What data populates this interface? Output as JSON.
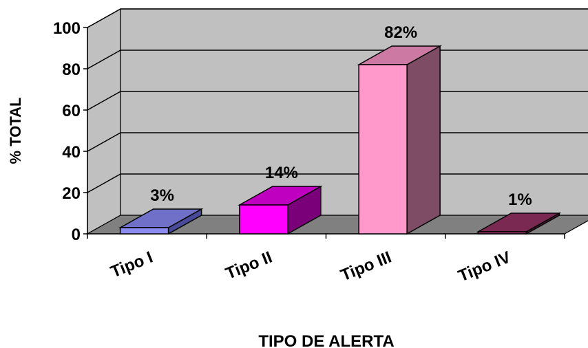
{
  "chart_data": {
    "type": "bar",
    "categories": [
      "Tipo I",
      "Tipo II",
      "Tipo III",
      "Tipo IV"
    ],
    "values": [
      3,
      14,
      82,
      1
    ],
    "data_labels": [
      "3%",
      "14%",
      "82%",
      "1%"
    ],
    "xlabel": "TIPO DE ALERTA",
    "ylabel": "% TOTAL",
    "ylim": [
      0,
      100
    ],
    "yticks": [
      "0",
      "20",
      "40",
      "60",
      "80",
      "100"
    ],
    "grid": true,
    "three_d": true,
    "legend": "none",
    "colors": {
      "wall": "#c0c0c0",
      "floor": "#808080",
      "bars": [
        {
          "front": "#8c8cf0",
          "top": "#7070c8",
          "side": "#4a4a9a"
        },
        {
          "front": "#ff00ff",
          "top": "#c000c0",
          "side": "#7a007a"
        },
        {
          "front": "#ff99cc",
          "top": "#cc7aa3",
          "side": "#7f4c66"
        },
        {
          "front": "#993366",
          "top": "#7a2952",
          "side": "#4c1933"
        }
      ]
    }
  }
}
